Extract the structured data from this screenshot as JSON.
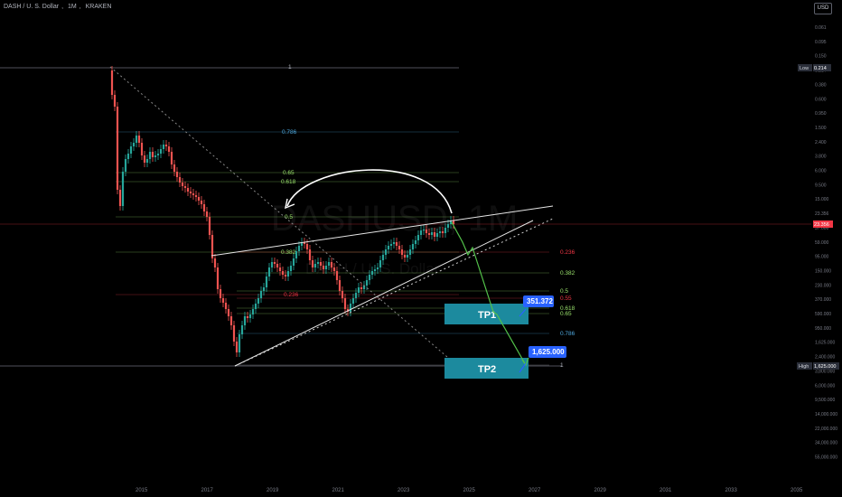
{
  "header": {
    "symbol": "DASH / U. S. Dollar",
    "interval": "1M",
    "exchange": "KRAKEN",
    "currency": "USD"
  },
  "watermark": {
    "main": "DASHUSD, 1M",
    "sub": "DASH / U. S. Dollar"
  },
  "price_scale": [
    "0.061",
    "0.095",
    "0.150",
    "0.214",
    "0.380",
    "0.600",
    "0.950",
    "1.500",
    "2.400",
    "3.800",
    "6.000",
    "9.500",
    "15.000",
    "23.356",
    "37.000",
    "59.000",
    "95.000",
    "150.000",
    "230.000",
    "370.000",
    "590.000",
    "950.000",
    "1,625.000",
    "2,400.000",
    "3,800.000",
    "6,000.000",
    "9,500.000",
    "14,000.000",
    "22,000.000",
    "34,000.000",
    "55,000.000"
  ],
  "time_axis": [
    "2015",
    "2017",
    "2019",
    "2021",
    "2023",
    "2025",
    "2027",
    "2029",
    "2031",
    "2033",
    "2035"
  ],
  "price_tags": {
    "low": {
      "label": "Low",
      "value": "0.214"
    },
    "current": {
      "value": "23.356"
    },
    "high": {
      "label": "High",
      "value": "1,625.000"
    }
  },
  "fib_upper": [
    {
      "level": "1",
      "color": "#b2b5be"
    },
    {
      "level": "0.786",
      "color": "#4ea8de"
    },
    {
      "level": "0.65",
      "color": "#9be36d"
    },
    {
      "level": "0.618",
      "color": "#9be36d"
    },
    {
      "level": "0.5",
      "color": "#9be36d"
    },
    {
      "level": "0.382",
      "color": "#9be36d"
    },
    {
      "level": "0.236",
      "color": "#f23645"
    }
  ],
  "fib_lower": [
    {
      "level": "0.236",
      "color": "#f23645"
    },
    {
      "level": "0.382",
      "color": "#9be36d"
    },
    {
      "level": "0.5",
      "color": "#9be36d"
    },
    {
      "level": "0.55",
      "color": "#f23645"
    },
    {
      "level": "0.618",
      "color": "#9be36d"
    },
    {
      "level": "0.65",
      "color": "#9be36d"
    },
    {
      "level": "0.786",
      "color": "#4ea8de"
    },
    {
      "level": "1",
      "color": "#b2b5be"
    }
  ],
  "targets": [
    {
      "label": "TP1",
      "value": "351.372"
    },
    {
      "label": "TP2",
      "value": "1,625.000"
    }
  ],
  "colors": {
    "background": "#000000",
    "up": "#26a69a",
    "down": "#ef5350",
    "target_box": "#1c8a9e",
    "target_badge": "#2962ff",
    "projection": "#22ab94"
  }
}
